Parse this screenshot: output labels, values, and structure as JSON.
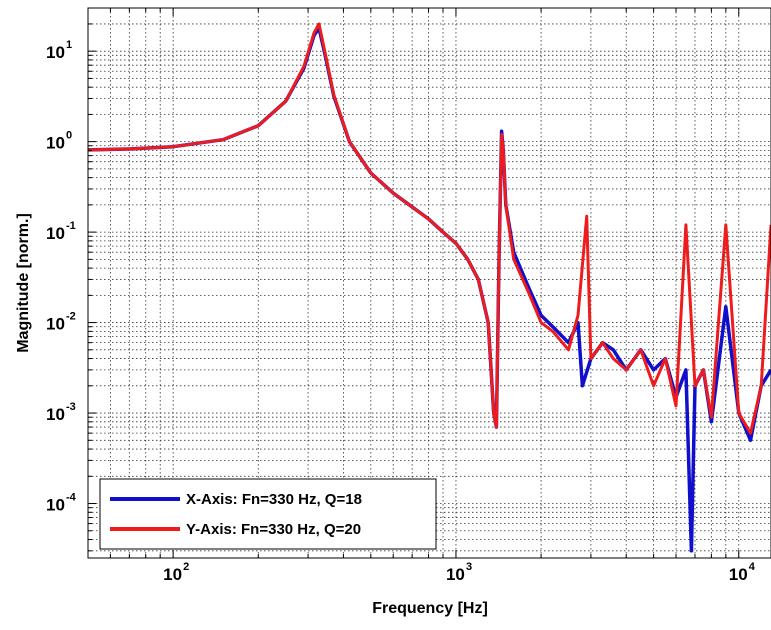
{
  "chart_data": {
    "type": "line",
    "xscale": "log",
    "yscale": "log",
    "xlim": [
      50,
      13000
    ],
    "ylim": [
      2.5e-05,
      30
    ],
    "xlabel": "Frequency [Hz]",
    "ylabel": "Magnitude [norm.]",
    "grid": true,
    "legend_position": "bottom-left",
    "x_ticks": [
      {
        "base": "10",
        "exp": "2"
      },
      {
        "base": "10",
        "exp": "3"
      },
      {
        "base": "10",
        "exp": "4"
      }
    ],
    "y_ticks": [
      {
        "base": "10",
        "exp": "1"
      },
      {
        "base": "10",
        "exp": "0"
      },
      {
        "base": "10",
        "exp": "-1"
      },
      {
        "base": "10",
        "exp": "-2"
      },
      {
        "base": "10",
        "exp": "-3"
      },
      {
        "base": "10",
        "exp": "-4"
      }
    ],
    "series": [
      {
        "name": "X-Axis: Fn=330 Hz, Q=18",
        "color": "#1010cc",
        "points": [
          [
            50,
            0.81
          ],
          [
            70,
            0.83
          ],
          [
            100,
            0.88
          ],
          [
            150,
            1.05
          ],
          [
            200,
            1.5
          ],
          [
            250,
            2.8
          ],
          [
            290,
            6.5
          ],
          [
            315,
            15
          ],
          [
            328,
            18
          ],
          [
            345,
            9
          ],
          [
            370,
            3.2
          ],
          [
            420,
            1.0
          ],
          [
            500,
            0.45
          ],
          [
            600,
            0.27
          ],
          [
            700,
            0.19
          ],
          [
            800,
            0.14
          ],
          [
            900,
            0.1
          ],
          [
            1000,
            0.075
          ],
          [
            1100,
            0.05
          ],
          [
            1200,
            0.03
          ],
          [
            1300,
            0.01
          ],
          [
            1360,
            0.001
          ],
          [
            1390,
            0.0007
          ],
          [
            1420,
            0.05
          ],
          [
            1450,
            1.3
          ],
          [
            1470,
            0.8
          ],
          [
            1500,
            0.2
          ],
          [
            1600,
            0.06
          ],
          [
            1800,
            0.025
          ],
          [
            2000,
            0.012
          ],
          [
            2200,
            0.009
          ],
          [
            2500,
            0.006
          ],
          [
            2700,
            0.01
          ],
          [
            2800,
            0.002
          ],
          [
            3000,
            0.004
          ],
          [
            3300,
            0.006
          ],
          [
            3600,
            0.005
          ],
          [
            4000,
            0.003
          ],
          [
            4500,
            0.005
          ],
          [
            5000,
            0.003
          ],
          [
            5500,
            0.004
          ],
          [
            6000,
            0.0015
          ],
          [
            6500,
            0.003
          ],
          [
            6800,
            3e-05
          ],
          [
            7000,
            0.002
          ],
          [
            7500,
            0.003
          ],
          [
            8000,
            0.0008
          ],
          [
            9000,
            0.015
          ],
          [
            10000,
            0.001
          ],
          [
            11000,
            0.0005
          ],
          [
            12000,
            0.002
          ],
          [
            13000,
            0.003
          ]
        ]
      },
      {
        "name": "Y-Axis: Fn=330 Hz, Q=20",
        "color": "#ee1c1c",
        "points": [
          [
            50,
            0.81
          ],
          [
            70,
            0.83
          ],
          [
            100,
            0.88
          ],
          [
            150,
            1.05
          ],
          [
            200,
            1.5
          ],
          [
            250,
            2.8
          ],
          [
            290,
            6.8
          ],
          [
            315,
            16
          ],
          [
            328,
            20
          ],
          [
            345,
            9.5
          ],
          [
            370,
            3.3
          ],
          [
            420,
            1.0
          ],
          [
            500,
            0.45
          ],
          [
            600,
            0.27
          ],
          [
            700,
            0.19
          ],
          [
            800,
            0.14
          ],
          [
            900,
            0.1
          ],
          [
            1000,
            0.075
          ],
          [
            1100,
            0.05
          ],
          [
            1200,
            0.03
          ],
          [
            1300,
            0.01
          ],
          [
            1360,
            0.001
          ],
          [
            1390,
            0.0007
          ],
          [
            1420,
            0.05
          ],
          [
            1450,
            1.2
          ],
          [
            1470,
            0.8
          ],
          [
            1500,
            0.2
          ],
          [
            1600,
            0.05
          ],
          [
            1800,
            0.022
          ],
          [
            2000,
            0.01
          ],
          [
            2200,
            0.008
          ],
          [
            2500,
            0.005
          ],
          [
            2700,
            0.012
          ],
          [
            2900,
            0.15
          ],
          [
            3000,
            0.004
          ],
          [
            3300,
            0.006
          ],
          [
            3600,
            0.004
          ],
          [
            4000,
            0.003
          ],
          [
            4500,
            0.005
          ],
          [
            5000,
            0.002
          ],
          [
            5500,
            0.004
          ],
          [
            6000,
            0.0012
          ],
          [
            6500,
            0.12
          ],
          [
            7000,
            0.002
          ],
          [
            7500,
            0.003
          ],
          [
            8000,
            0.0009
          ],
          [
            9000,
            0.12
          ],
          [
            10000,
            0.001
          ],
          [
            11000,
            0.0006
          ],
          [
            12000,
            0.002
          ],
          [
            13000,
            0.12
          ]
        ]
      }
    ]
  }
}
